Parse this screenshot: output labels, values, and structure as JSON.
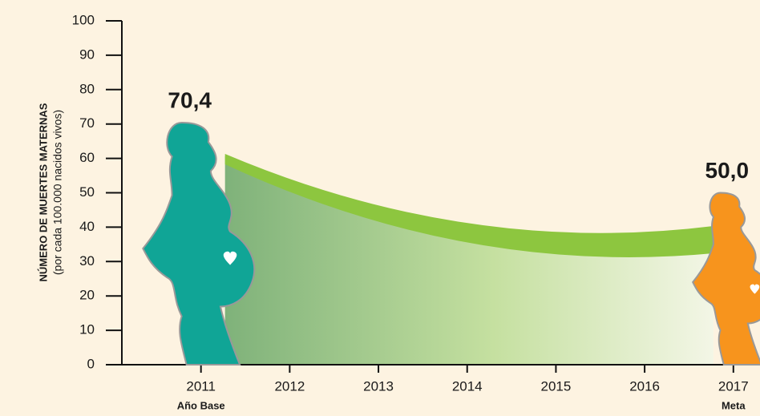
{
  "chart_data": {
    "type": "silhouette",
    "y_label": "NÚMERO DE MUERTES MATERNAS",
    "y_sublabel": "(por cada 100.000 nacidos vivos)",
    "x": [
      2011,
      2017
    ],
    "values": [
      70.4,
      50.0
    ],
    "value_labels": [
      "70,4",
      "50,0"
    ],
    "x_sublabels": [
      "Año Base",
      "Meta"
    ],
    "colors": [
      "#10a596",
      "#f7941d"
    ],
    "band_color": "#8dc63f",
    "xlim": [
      2010,
      2017.3
    ],
    "xticks": [
      2011,
      2012,
      2013,
      2014,
      2015,
      2016,
      2017
    ],
    "ylim": [
      0,
      100
    ],
    "yticks": [
      0,
      10,
      20,
      30,
      40,
      50,
      60,
      70,
      80,
      90,
      100
    ]
  }
}
